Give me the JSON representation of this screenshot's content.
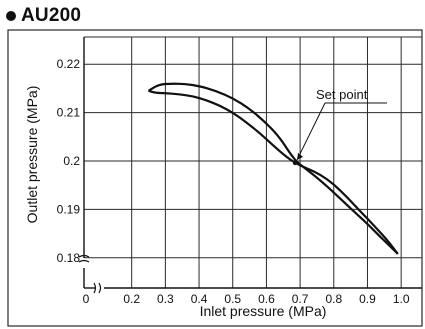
{
  "chart_data": {
    "type": "line",
    "title": "AU200",
    "xlabel": "Inlet pressure (MPa)",
    "ylabel": "Outlet pressure (MPa)",
    "x_ticks": [
      0,
      0.2,
      0.3,
      0.4,
      0.5,
      0.6,
      0.7,
      0.8,
      0.9,
      1.0
    ],
    "x_tick_labels": [
      "0",
      "0.2",
      "0.3",
      "0.4",
      "0.5",
      "0.6",
      "0.7",
      "0.8",
      "0.9",
      "1.0"
    ],
    "y_ticks": [
      0.18,
      0.19,
      0.2,
      0.21,
      0.22
    ],
    "y_tick_labels": [
      "0.18",
      "0.19",
      "0.2",
      "0.21",
      "0.22"
    ],
    "xlim": [
      0.1,
      1.05
    ],
    "ylim": [
      0.175,
      0.225
    ],
    "axis_breaks": true,
    "grid": true,
    "series": [
      {
        "values": [
          [
            0.25,
            0.2145
          ],
          [
            0.28,
            0.2158
          ],
          [
            0.32,
            0.216
          ],
          [
            0.36,
            0.2159
          ],
          [
            0.4,
            0.2155
          ],
          [
            0.45,
            0.2145
          ],
          [
            0.5,
            0.213
          ],
          [
            0.55,
            0.2108
          ],
          [
            0.6,
            0.2078
          ],
          [
            0.64,
            0.2048
          ],
          [
            0.67,
            0.2016
          ],
          [
            0.69,
            0.1998
          ],
          [
            0.72,
            0.1982
          ],
          [
            0.76,
            0.196
          ],
          [
            0.8,
            0.1935
          ],
          [
            0.85,
            0.1902
          ],
          [
            0.9,
            0.187
          ],
          [
            0.94,
            0.1842
          ],
          [
            0.97,
            0.1822
          ],
          [
            0.99,
            0.1808
          ]
        ]
      },
      {
        "values": [
          [
            0.99,
            0.1808
          ],
          [
            0.96,
            0.1836
          ],
          [
            0.92,
            0.1866
          ],
          [
            0.88,
            0.1895
          ],
          [
            0.84,
            0.1925
          ],
          [
            0.8,
            0.1952
          ],
          [
            0.76,
            0.1972
          ],
          [
            0.72,
            0.1985
          ],
          [
            0.69,
            0.1994
          ],
          [
            0.66,
            0.2008
          ],
          [
            0.62,
            0.2032
          ],
          [
            0.58,
            0.2058
          ],
          [
            0.54,
            0.208
          ],
          [
            0.5,
            0.21
          ],
          [
            0.46,
            0.2115
          ],
          [
            0.42,
            0.2126
          ],
          [
            0.38,
            0.2134
          ],
          [
            0.34,
            0.2138
          ],
          [
            0.3,
            0.214
          ],
          [
            0.27,
            0.2141
          ],
          [
            0.25,
            0.2145
          ]
        ]
      }
    ],
    "annotations": [
      {
        "text": "Set point",
        "x": 0.685,
        "y": 0.1996
      }
    ],
    "colors": {
      "line": "#111111",
      "grid": "#2a2a2a",
      "background": "#ffffff"
    }
  }
}
